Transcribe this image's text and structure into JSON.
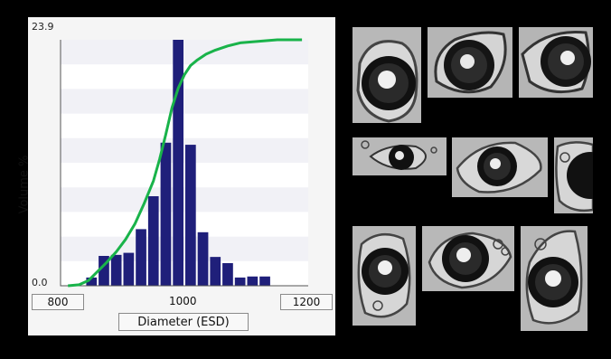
{
  "chart_data": {
    "type": "bar",
    "title": "",
    "ylabel": "Volume %",
    "xlabel": "Diameter (ESD)",
    "y_tick_labels": {
      "top": "23.9",
      "bottom": "0.0"
    },
    "x_range_labels": {
      "min": "800",
      "mid": "1000",
      "max": "1200"
    },
    "xlim": [
      800,
      1200
    ],
    "ylim": [
      0,
      23.9
    ],
    "bin_width": 20,
    "bin_centers": [
      850,
      870,
      890,
      910,
      930,
      950,
      970,
      990,
      1010,
      1030,
      1050,
      1070,
      1090,
      1110,
      1130
    ],
    "values": [
      0.8,
      2.9,
      3.0,
      3.2,
      5.5,
      8.7,
      13.9,
      23.9,
      13.7,
      5.2,
      2.8,
      2.2,
      0.8,
      0.9,
      0.9
    ],
    "series": [
      {
        "name": "",
        "type": "line",
        "x": [
          812,
          830,
          845,
          860,
          875,
          890,
          905,
          920,
          935,
          950,
          960,
          970,
          980,
          990,
          1000,
          1010,
          1020,
          1035,
          1050,
          1070,
          1090,
          1110,
          1130,
          1150,
          1170,
          1190
        ],
        "y": [
          0.0,
          0.1,
          0.5,
          1.4,
          2.3,
          3.3,
          4.5,
          6.0,
          8.0,
          10.2,
          12.3,
          14.7,
          17.3,
          19.2,
          20.5,
          21.4,
          21.9,
          22.5,
          22.9,
          23.3,
          23.6,
          23.7,
          23.8,
          23.9,
          23.9,
          23.9
        ]
      }
    ],
    "grid": true,
    "colors": {
      "bars": "#1f1f7a",
      "line": "#19b34a",
      "grid_band": "#e6e6ee"
    }
  },
  "thumbnails": [
    {
      "id": "t1"
    },
    {
      "id": "t2"
    },
    {
      "id": "t3"
    },
    {
      "id": "t4"
    },
    {
      "id": "t5"
    },
    {
      "id": "t6"
    },
    {
      "id": "t7"
    },
    {
      "id": "t8"
    },
    {
      "id": "t9"
    }
  ]
}
